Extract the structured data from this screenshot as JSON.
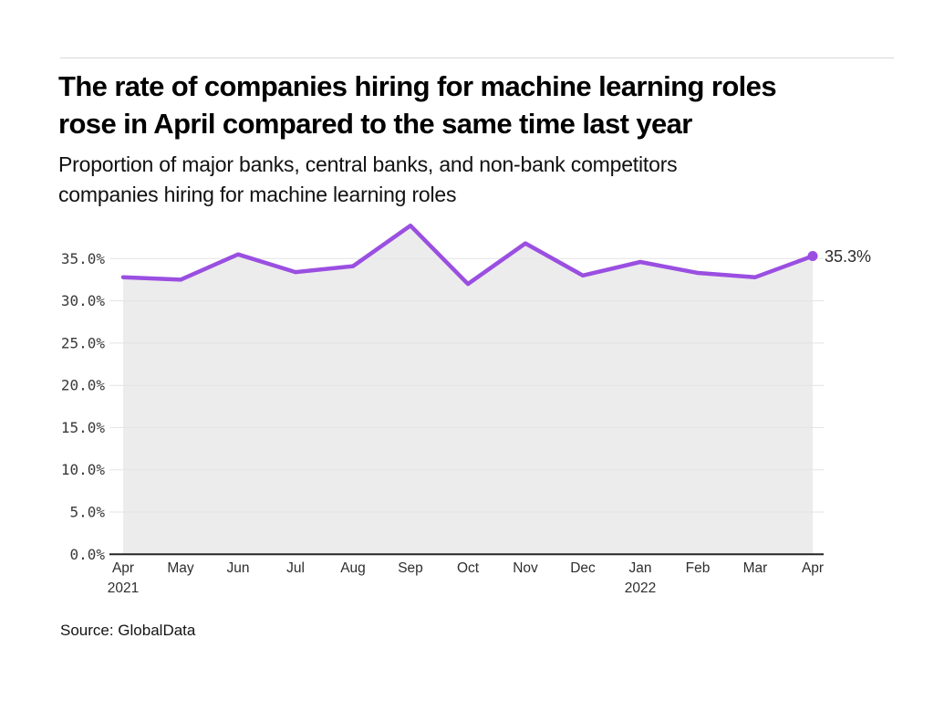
{
  "header": {
    "title_lines": [
      "The rate of companies hiring for machine learning roles",
      "rose in April compared to the same time last year"
    ],
    "subtitle_lines": [
      "Proportion of major banks, central banks, and non-bank competitors",
      "companies hiring for machine learning roles"
    ]
  },
  "footer": {
    "source": "Source: GlobalData"
  },
  "chart_data": {
    "type": "line",
    "title": "The rate of companies hiring for machine learning roles rose in April compared to the same time last year",
    "subtitle": "Proportion of major banks, central banks, and non-bank competitors companies hiring for machine learning roles",
    "categories": [
      "Apr 2021",
      "May 2021",
      "Jun 2021",
      "Jul 2021",
      "Aug 2021",
      "Sep 2021",
      "Oct 2021",
      "Nov 2021",
      "Dec 2021",
      "Jan 2022",
      "Feb 2022",
      "Mar 2022",
      "Apr 2022"
    ],
    "values": [
      32.8,
      32.5,
      35.5,
      33.4,
      34.1,
      38.9,
      32.0,
      36.8,
      33.0,
      34.6,
      33.3,
      32.8,
      35.3
    ],
    "end_label": "35.3%",
    "xlabel": "",
    "ylabel": "",
    "ylim": [
      0,
      40.7
    ],
    "grid": true,
    "legend": "none",
    "area_fill": true,
    "y_ticks": [
      "0.0%",
      "5.0%",
      "10.0%",
      "15.0%",
      "20.0%",
      "25.0%",
      "30.0%",
      "35.0%"
    ],
    "x_labels": [
      {
        "m": "Apr",
        "yr": "2021"
      },
      {
        "m": "May"
      },
      {
        "m": "Jun"
      },
      {
        "m": "Jul"
      },
      {
        "m": "Aug"
      },
      {
        "m": "Sep"
      },
      {
        "m": "Oct"
      },
      {
        "m": "Nov"
      },
      {
        "m": "Dec"
      },
      {
        "m": "Jan",
        "yr": "2022"
      },
      {
        "m": "Feb"
      },
      {
        "m": "Mar"
      },
      {
        "m": "Apr"
      }
    ],
    "colors": {
      "line": "#9A4FE1",
      "area": "#ECECEC",
      "grid": "#E3E3E3",
      "axis": "#262626",
      "tick_text": "#3A3A3A",
      "annotation_text": "#2B2B2B"
    }
  }
}
